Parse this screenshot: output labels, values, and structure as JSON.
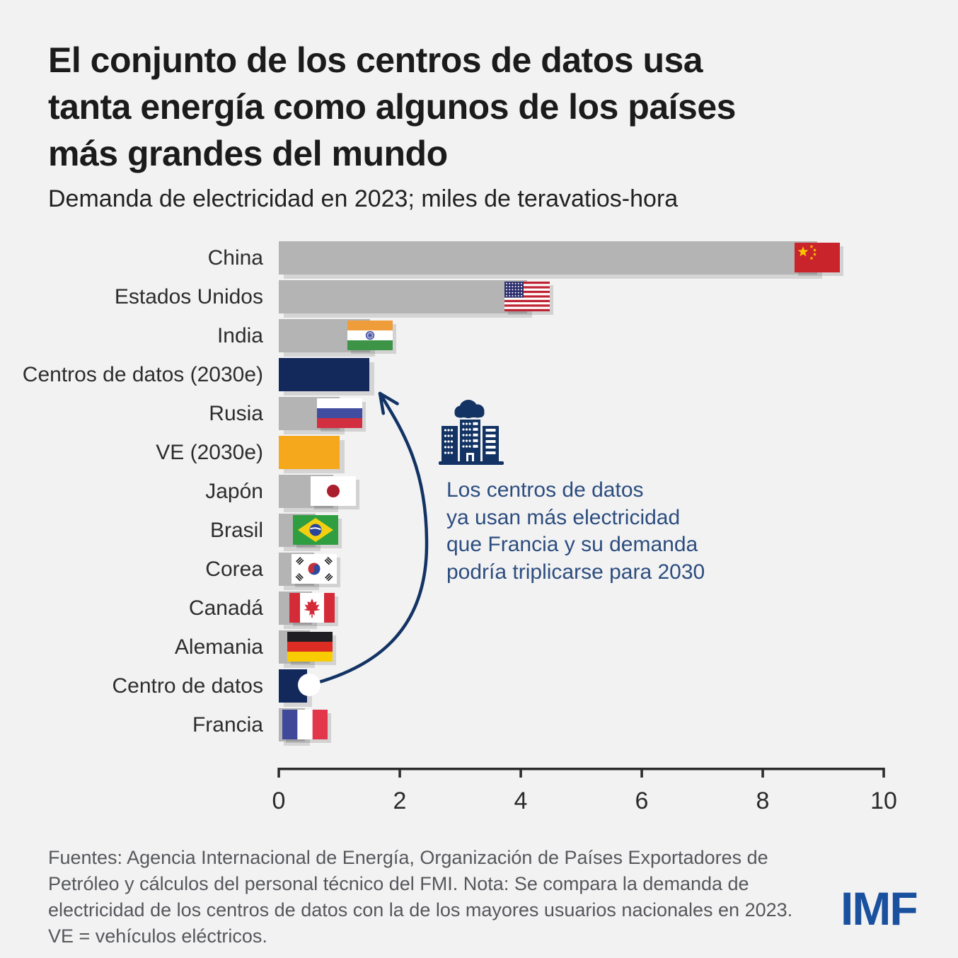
{
  "header": {
    "title_lines": [
      "El conjunto de los centros de datos usa",
      "tanta energía como algunos de los países",
      "más grandes del mundo"
    ],
    "subtitle": "Demanda de electricidad en 2023; miles de teravatios-hora"
  },
  "annotation": {
    "lines": [
      "Los centros de datos",
      "ya usan más electricidad",
      "que Francia y su demanda",
      "podría triplicarse para 2030"
    ],
    "icon": "data-center-building-icon"
  },
  "footer": {
    "source_lines": [
      "Fuentes: Agencia Internacional de Energía, Organización de Países Exportadores de",
      "Petróleo y cálculos del personal técnico del FMI. Nota: Se compara la demanda de",
      "electricidad de los centros de datos con la de los mayores usuarios nacionales en 2023.",
      "VE = vehículos eléctricos."
    ],
    "logo": "IMF"
  },
  "colors": {
    "background": "#f2f2f3",
    "bar_gray": "#b4b4b4",
    "bar_navy": "#13295c",
    "bar_orange": "#f6a81c",
    "annotation_text": "#2c4d7e",
    "arrow_navy": "#123363",
    "logo_blue": "#1a519f",
    "footer_gray": "#56575b",
    "title_black": "#1b1b1b",
    "axis_black": "#2b2b2b"
  },
  "chart_data": {
    "type": "bar",
    "orientation": "horizontal",
    "title": "El conjunto de los centros de datos usa tanta energía como algunos de los países más grandes del mundo",
    "subtitle": "Demanda de electricidad en 2023; miles de teravatios-hora",
    "units": "miles de teravatios-hora",
    "year": "2023",
    "xlim": [
      0,
      10
    ],
    "x_ticks": [
      0,
      2,
      4,
      6,
      8,
      10
    ],
    "grid": false,
    "rows": [
      {
        "label": "China",
        "value": 8.9,
        "bar": "gray",
        "flag": "cn"
      },
      {
        "label": "Estados Unidos",
        "value": 4.1,
        "bar": "gray",
        "flag": "us"
      },
      {
        "label": "India",
        "value": 1.51,
        "bar": "gray",
        "flag": "in"
      },
      {
        "label": "Centros de datos (2030e)",
        "value": 1.5,
        "bar": "navy",
        "flag": null
      },
      {
        "label": "Rusia",
        "value": 1.0,
        "bar": "gray",
        "flag": "ru"
      },
      {
        "label": "VE (2030e)",
        "value": 1.0,
        "bar": "orange",
        "flag": null
      },
      {
        "label": "Japón",
        "value": 0.9,
        "bar": "gray",
        "flag": "jp"
      },
      {
        "label": "Brasil",
        "value": 0.61,
        "bar": "gray",
        "flag": "br"
      },
      {
        "label": "Corea",
        "value": 0.58,
        "bar": "gray",
        "flag": "kr"
      },
      {
        "label": "Canadá",
        "value": 0.55,
        "bar": "gray",
        "flag": "ca"
      },
      {
        "label": "Alemania",
        "value": 0.51,
        "bar": "gray",
        "flag": "de"
      },
      {
        "label": "Centro de datos",
        "value": 0.47,
        "bar": "navy",
        "flag": null
      },
      {
        "label": "Francia",
        "value": 0.43,
        "bar": "gray",
        "flag": "fr"
      }
    ]
  }
}
